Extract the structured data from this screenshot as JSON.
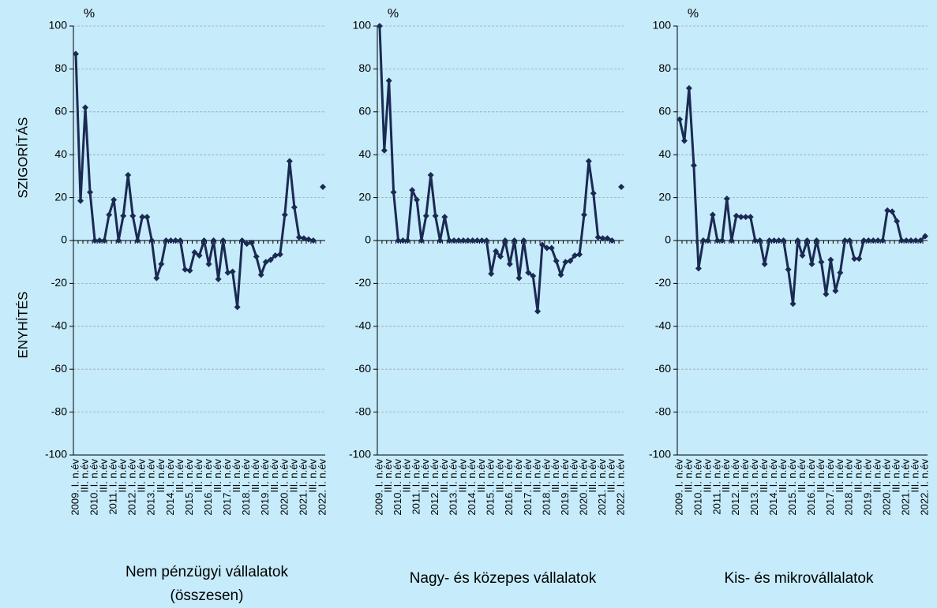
{
  "chart_data": [
    {
      "type": "line",
      "title_lines": [
        "Nem pénzügyi vállalatok",
        "(összesen)"
      ],
      "unit_label": "%",
      "y_label_top": "SZIGORÍTÁS",
      "y_label_bottom": "ENYHÍTÉS",
      "categories": [
        "2009. I. n.év",
        null,
        "III. n.év",
        null,
        "2010. I. n.év",
        null,
        "III. n.év",
        null,
        "2011. I. n.év",
        null,
        "III. n.év",
        null,
        "2012. I. n.év",
        null,
        "III. n.év",
        null,
        "2013. I. n.év",
        null,
        "III. n.év",
        null,
        "2014. I. n.év",
        null,
        "III. n.év",
        null,
        "2015. I. n.év",
        null,
        "III. n.év",
        null,
        "2016. I. n.év",
        null,
        "III. n.év",
        null,
        "2017. I. n.év",
        null,
        "III. n.év",
        null,
        "2018. I. n.év",
        null,
        "III. n.év",
        null,
        "2019. I. n.év",
        null,
        "III. n.év",
        null,
        "2020. I. n.év",
        null,
        "III. n.év",
        null,
        "2021. I. n.év",
        null,
        "III. n.év",
        null,
        "2022. I. n.év"
      ],
      "values": [
        87,
        18.5,
        62,
        22.5,
        0,
        0,
        0,
        12,
        19,
        0,
        11.5,
        30.5,
        11.5,
        0,
        11,
        11,
        0,
        -17.5,
        -11,
        0,
        0,
        0,
        0,
        -13.5,
        -14,
        -5.5,
        -7,
        0,
        -11,
        0,
        -18,
        0,
        -15,
        -14.5,
        -31,
        0,
        -1.5,
        -1,
        -7.5,
        -16,
        -10,
        -9,
        -7,
        -6.5,
        12,
        37,
        15.5,
        1.5,
        1,
        0.5,
        0,
        null,
        25
      ],
      "color": "#1b2a52",
      "ylim": [
        -100,
        100
      ],
      "yticks": [
        -100,
        -80,
        -60,
        -40,
        -20,
        0,
        20,
        40,
        60,
        80,
        100
      ],
      "grid": true
    },
    {
      "type": "line",
      "title_lines": [
        "Nagy- és közepes vállalatok"
      ],
      "unit_label": "%",
      "categories": [
        "2009. I. n.év",
        null,
        "III. n.év",
        null,
        "2010. I. n.év",
        null,
        "III. n.év",
        null,
        "2011. I. n.év",
        null,
        "III. n.év",
        null,
        "2012. I. n.év",
        null,
        "III. n.év",
        null,
        "2013. I. n.év",
        null,
        "III. n.év",
        null,
        "2014. I. n.év",
        null,
        "III. n.év",
        null,
        "2015. I. n.év",
        null,
        "III. n.év",
        null,
        "2016. I. n.év",
        null,
        "III. n.év",
        null,
        "2017. I. n.év",
        null,
        "III. n.év",
        null,
        "2018. I. n.év",
        null,
        "III. n.év",
        null,
        "2019. I. n.év",
        null,
        "III. n.év",
        null,
        "2020. I. n.év",
        null,
        "III. n.év",
        null,
        "2021. I. n.év",
        null,
        "III. n.év",
        null,
        "2022. I. n.év"
      ],
      "values": [
        100,
        42,
        74.5,
        22.5,
        0,
        0,
        0,
        23.5,
        19,
        0,
        11.5,
        30.5,
        11.5,
        0,
        11,
        0,
        0,
        0,
        0,
        0,
        0,
        0,
        0,
        0,
        -15.5,
        -5,
        -7.5,
        0,
        -11,
        0,
        -17.5,
        0,
        -15,
        -16.5,
        -33,
        -2,
        -3.5,
        -3.5,
        -9.5,
        -16,
        -10,
        -9.5,
        -7,
        -6.5,
        12,
        37,
        22,
        1.5,
        1,
        1,
        0,
        null,
        25
      ],
      "color": "#1b2a52",
      "ylim": [
        -100,
        100
      ],
      "yticks": [
        -100,
        -80,
        -60,
        -40,
        -20,
        0,
        20,
        40,
        60,
        80,
        100
      ],
      "grid": true
    },
    {
      "type": "line",
      "title_lines": [
        "Kis- és mikrovállalatok"
      ],
      "unit_label": "%",
      "categories": [
        "2009. I. n.év",
        null,
        "III. n.év",
        null,
        "2010. I. n.év",
        null,
        "III. n.év",
        null,
        "2011. I. n.év",
        null,
        "III. n.év",
        null,
        "2012. I. n.év",
        null,
        "III. n.év",
        null,
        "2013. I. n.év",
        null,
        "III. n.év",
        null,
        "2014. I. n.év",
        null,
        "III. n.év",
        null,
        "2015. I. n.év",
        null,
        "III. n.év",
        null,
        "2016. I. n.év",
        null,
        "III. n.év",
        null,
        "2017. I. n.év",
        null,
        "III. n.év",
        null,
        "2018. I. n.év",
        null,
        "III. n.év",
        null,
        "2019. I. n.év",
        null,
        "III. n.év",
        null,
        "2020. I. n.év",
        null,
        "III. n.év",
        null,
        "2021. I. n.év",
        null,
        "III. n.év",
        null,
        "2022. I. n.év"
      ],
      "values": [
        56.5,
        46.5,
        71,
        35,
        -13,
        0,
        0,
        12,
        0,
        0,
        19.5,
        0,
        11.5,
        11,
        11,
        11,
        0,
        0,
        -11,
        0,
        0,
        0,
        0,
        -13.5,
        -29.5,
        0,
        -7,
        0,
        -11,
        0,
        -10,
        -25,
        -9,
        -23.5,
        -15,
        0,
        0,
        -8.5,
        -8.5,
        0,
        0,
        0,
        0,
        0,
        14,
        13.5,
        9,
        0,
        0,
        0,
        0,
        0,
        2
      ],
      "color": "#1b2a52",
      "ylim": [
        -100,
        100
      ],
      "yticks": [
        -100,
        -80,
        -60,
        -40,
        -20,
        0,
        20,
        40,
        60,
        80,
        100
      ],
      "grid": true
    }
  ]
}
